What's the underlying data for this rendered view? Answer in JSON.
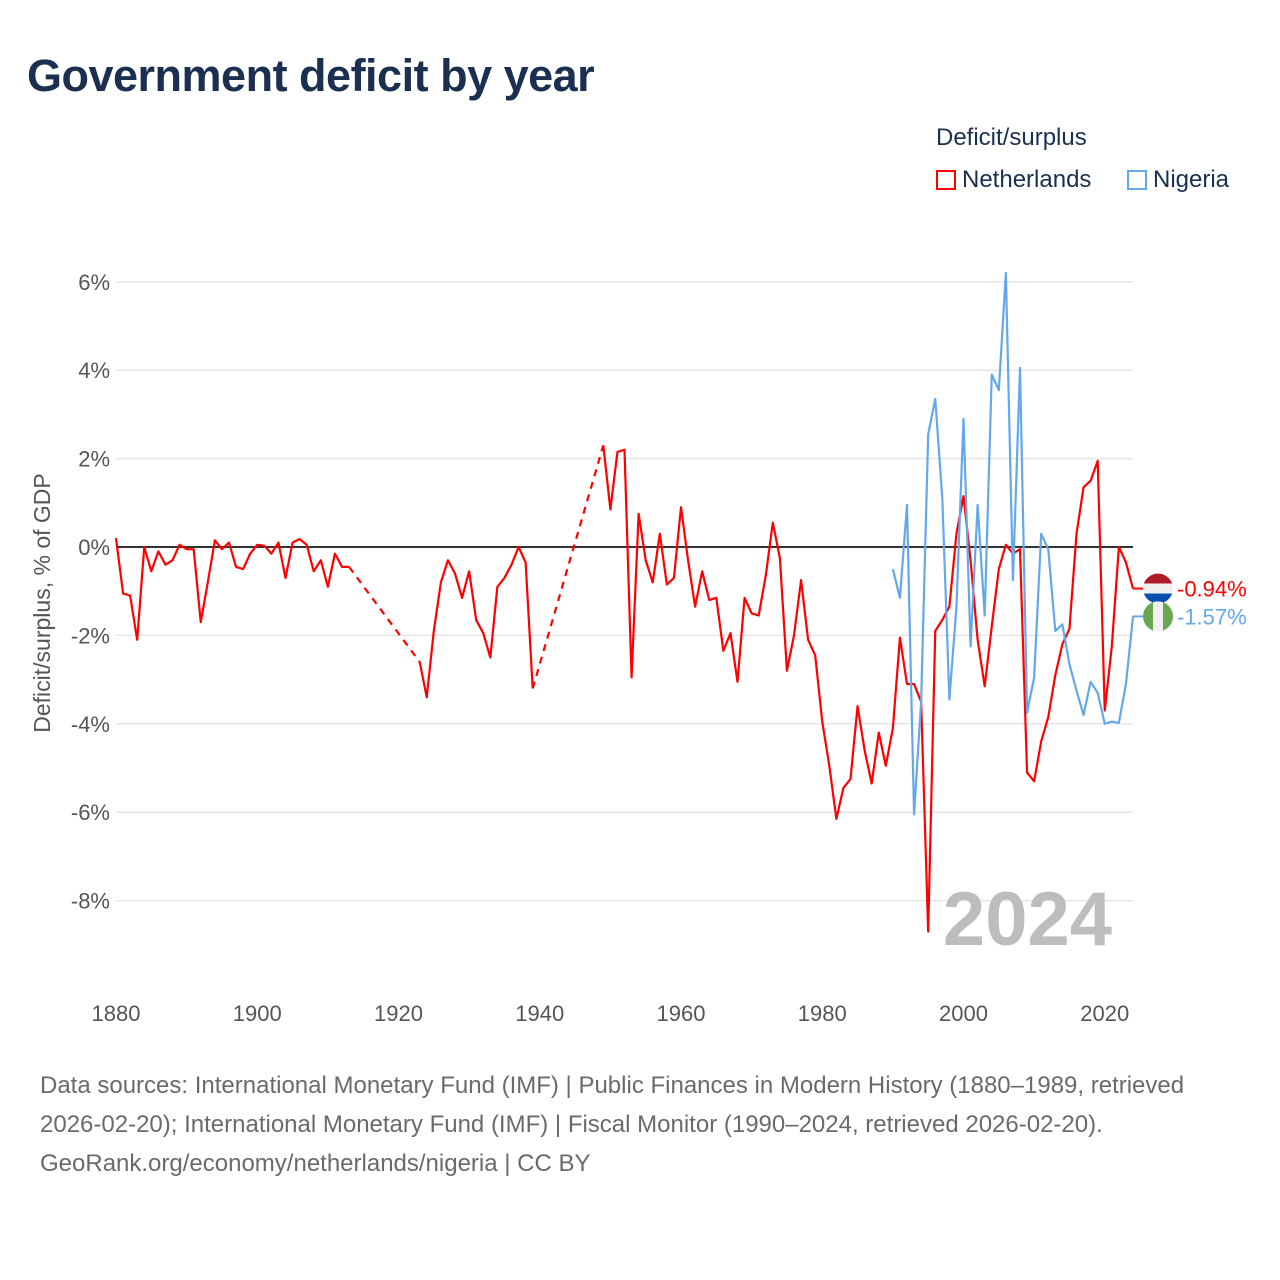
{
  "title": "Government deficit by year",
  "legend": {
    "title": "Deficit/surplus",
    "items": [
      {
        "label": "Netherlands",
        "color": "#ff0000"
      },
      {
        "label": "Nigeria",
        "color": "#64a8ec"
      }
    ]
  },
  "watermark_year": "2024",
  "end_labels": {
    "netherlands": "-0.94%",
    "nigeria": "-1.57%"
  },
  "footer": {
    "sources": "Data sources: International Monetary Fund (IMF) | Public Finances in Modern History (1880–1989, retrieved 2026-02-20); International Monetary Fund (IMF) | Fiscal Monitor (1990–2024, retrieved 2026-02-20).",
    "credit": "GeoRank.org/economy/netherlands/nigeria | CC BY"
  },
  "chart_data": {
    "type": "line",
    "title": "Government deficit by year",
    "xlabel": "",
    "ylabel": "Deficit/surplus, % of GDP",
    "xlim": [
      1880,
      2024
    ],
    "ylim": [
      -9.8,
      6.5
    ],
    "x_ticks": [
      1880,
      1900,
      1920,
      1940,
      1960,
      1980,
      2000,
      2020
    ],
    "x_tick_labels": [
      "1880",
      "1900",
      "1920",
      "1940",
      "1960",
      "1980",
      "2000",
      "2020"
    ],
    "y_ticks": [
      6,
      4,
      2,
      0,
      -2,
      -4,
      -6,
      -8
    ],
    "y_tick_labels": [
      "6%",
      "4%",
      "2%",
      "0%",
      "-2%",
      "-4%",
      "-6%",
      "-8%"
    ],
    "grid": true,
    "legend_position": "top-right",
    "series": [
      {
        "name": "Netherlands",
        "color": "#ff0000",
        "start_year": 1880,
        "values": [
          0.2,
          -1.05,
          -1.1,
          -2.1,
          0,
          -0.55,
          -0.1,
          -0.4,
          -0.3,
          0.05,
          -0.05,
          -0.05,
          -1.7,
          -0.8,
          0.15,
          -0.05,
          0.1,
          -0.45,
          -0.5,
          -0.15,
          0.05,
          0.03,
          -0.15,
          0.1,
          -0.7,
          0.1,
          0.18,
          0.05,
          -0.55,
          -0.3,
          -0.9,
          -0.15,
          -0.45,
          -0.45,
          null,
          null,
          null,
          null,
          null,
          null,
          null,
          null,
          null,
          -2.6,
          -3.4,
          -1.9,
          -0.8,
          -0.3,
          -0.6,
          -1.15,
          -0.55,
          -1.65,
          -1.95,
          -2.5,
          -0.9,
          -0.7,
          -0.4,
          0.0,
          -0.35,
          -3.2,
          null,
          null,
          null,
          null,
          null,
          null,
          null,
          null,
          null,
          2.3,
          0.85,
          2.15,
          2.2,
          -2.95,
          0.75,
          -0.3,
          -0.8,
          0.3,
          -0.85,
          -0.7,
          0.9,
          -0.3,
          -1.35,
          -0.55,
          -1.2,
          -1.15,
          -2.35,
          -1.95,
          -3.05,
          -1.15,
          -1.5,
          -1.55,
          -0.65,
          0.55,
          -0.25,
          -2.8,
          -2.0,
          -0.75,
          -2.1,
          -2.45,
          -3.95,
          -4.95,
          -6.15,
          -5.45,
          -5.25,
          -3.6,
          -4.6,
          -5.35,
          -4.2,
          -4.95,
          -4.1,
          -2.05,
          -3.1,
          -3.1,
          -3.5,
          -8.7,
          -1.9,
          -1.65,
          -1.35,
          0.3,
          1.15,
          -0.3,
          -2.1,
          -3.15,
          -1.8,
          -0.5,
          0.05,
          -0.15,
          -0.05,
          -5.1,
          -5.3,
          -4.4,
          -3.85,
          -2.9,
          -2.2,
          -1.85,
          0.3,
          1.35,
          1.5,
          1.95,
          -3.7,
          -2.25,
          0.0,
          -0.35,
          -0.94
        ]
      },
      {
        "name": "Nigeria",
        "color": "#64a8ec",
        "start_year": 1990,
        "values": [
          -0.5,
          -1.15,
          0.95,
          -6.05,
          -3.5,
          2.55,
          3.35,
          1.1,
          -3.45,
          -1.35,
          2.9,
          -2.25,
          0.95,
          -1.55,
          3.9,
          3.55,
          6.2,
          -0.75,
          4.05,
          -3.75,
          -2.95,
          0.3,
          -0.05,
          -1.9,
          -1.75,
          -2.65,
          -3.25,
          -3.8,
          -3.05,
          -3.3,
          -4.0,
          -3.95,
          -3.98,
          -3.1,
          -1.57
        ]
      }
    ]
  }
}
